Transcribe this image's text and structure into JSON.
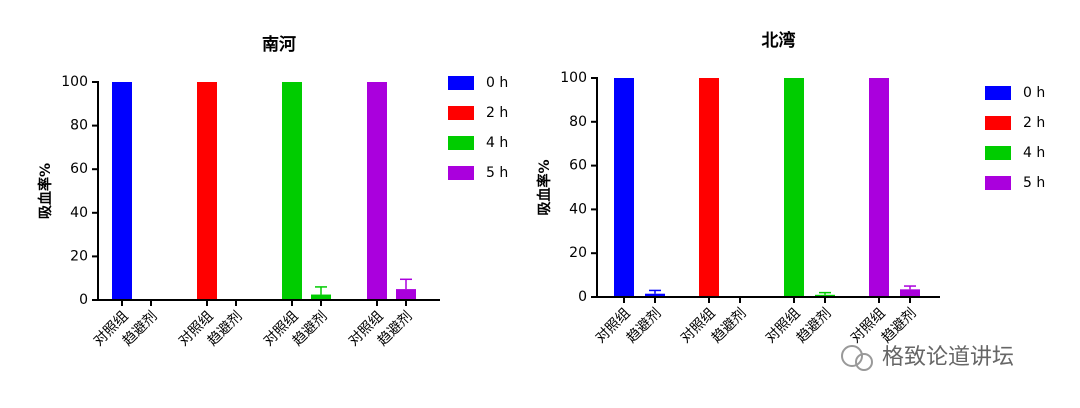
{
  "chart_data": [
    {
      "type": "bar",
      "title": "南河",
      "ylabel": "吸血率%",
      "categories": [
        "对照组",
        "趋避剂"
      ],
      "series": [
        {
          "name": "0 h",
          "color": "#0000ff",
          "values": [
            100,
            0
          ],
          "errors": [
            0,
            0
          ]
        },
        {
          "name": "2 h",
          "color": "#ff0000",
          "values": [
            100,
            0
          ],
          "errors": [
            0,
            0
          ]
        },
        {
          "name": "4 h",
          "color": "#00cc00",
          "values": [
            100,
            2.5
          ],
          "errors": [
            0,
            3.5
          ]
        },
        {
          "name": "5 h",
          "color": "#aa00dd",
          "values": [
            100,
            5
          ],
          "errors": [
            0,
            4.5
          ]
        }
      ],
      "ylim": [
        0,
        100
      ],
      "yticks": [
        0,
        20,
        40,
        60,
        80,
        100
      ]
    },
    {
      "type": "bar",
      "title": "北湾",
      "ylabel": "吸血率%",
      "categories": [
        "对照组",
        "趋避剂"
      ],
      "series": [
        {
          "name": "0 h",
          "color": "#0000ff",
          "values": [
            100,
            1.5
          ],
          "errors": [
            0,
            1.5
          ]
        },
        {
          "name": "2 h",
          "color": "#ff0000",
          "values": [
            100,
            0
          ],
          "errors": [
            0,
            0
          ]
        },
        {
          "name": "4 h",
          "color": "#00cc00",
          "values": [
            100,
            1
          ],
          "errors": [
            0,
            1
          ]
        },
        {
          "name": "5 h",
          "color": "#aa00dd",
          "values": [
            100,
            3.5
          ],
          "errors": [
            0,
            1.5
          ]
        }
      ],
      "ylim": [
        0,
        100
      ],
      "yticks": [
        0,
        20,
        40,
        60,
        80,
        100
      ]
    }
  ],
  "watermark": "格致论道讲坛"
}
